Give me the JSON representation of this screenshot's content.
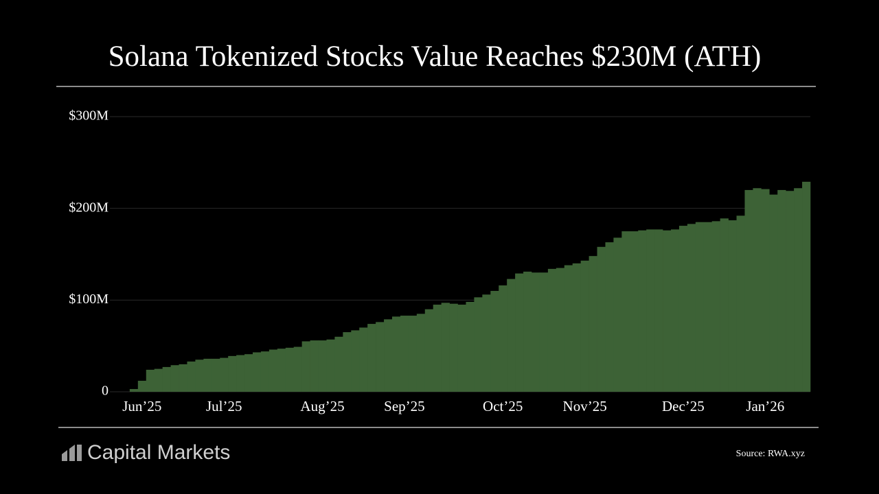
{
  "chart_data": {
    "type": "bar",
    "title": "Solana Tokenized Stocks Value Reaches $230M (ATH)",
    "source": "Source: RWA.xyz",
    "categories": [
      null,
      null,
      null,
      "Jun’25",
      null,
      null,
      null,
      null,
      null,
      null,
      null,
      null,
      null,
      "Jul’25",
      null,
      null,
      null,
      null,
      null,
      null,
      null,
      null,
      null,
      null,
      null,
      "Aug’25",
      null,
      null,
      null,
      null,
      null,
      null,
      null,
      null,
      null,
      "Sep’25",
      null,
      null,
      null,
      null,
      null,
      null,
      null,
      null,
      null,
      null,
      null,
      "Oct’25",
      null,
      null,
      null,
      null,
      null,
      null,
      null,
      null,
      null,
      "Nov’25",
      null,
      null,
      null,
      null,
      null,
      null,
      null,
      null,
      null,
      null,
      null,
      "Dec’25",
      null,
      null,
      null,
      null,
      null,
      null,
      null,
      null,
      null,
      "Jan’26",
      null,
      null,
      null,
      null,
      null
    ],
    "values": [
      0,
      0,
      3,
      12,
      24,
      25,
      27,
      29,
      30,
      33,
      35,
      36,
      36,
      37,
      39,
      40,
      41,
      43,
      44,
      46,
      47,
      48,
      49,
      55,
      56,
      56,
      57,
      60,
      65,
      67,
      70,
      74,
      76,
      79,
      82,
      83,
      83,
      85,
      90,
      95,
      97,
      96,
      95,
      98,
      103,
      106,
      110,
      116,
      123,
      129,
      131,
      130,
      130,
      134,
      135,
      138,
      140,
      143,
      148,
      158,
      163,
      168,
      175,
      175,
      176,
      177,
      177,
      176,
      177,
      181,
      183,
      185,
      185,
      186,
      189,
      187,
      192,
      220,
      222,
      221,
      215,
      220,
      219,
      222,
      229
    ],
    "color": "#3d6236",
    "ylim": [
      0,
      300
    ],
    "yticks": [
      0,
      {
        "value": 100,
        "label": "$100M"
      },
      {
        "value": 200,
        "label": "$200M"
      },
      {
        "value": 300,
        "label": "$300M"
      }
    ],
    "grid": true
  },
  "footer": {
    "brand": "Capital Markets"
  }
}
